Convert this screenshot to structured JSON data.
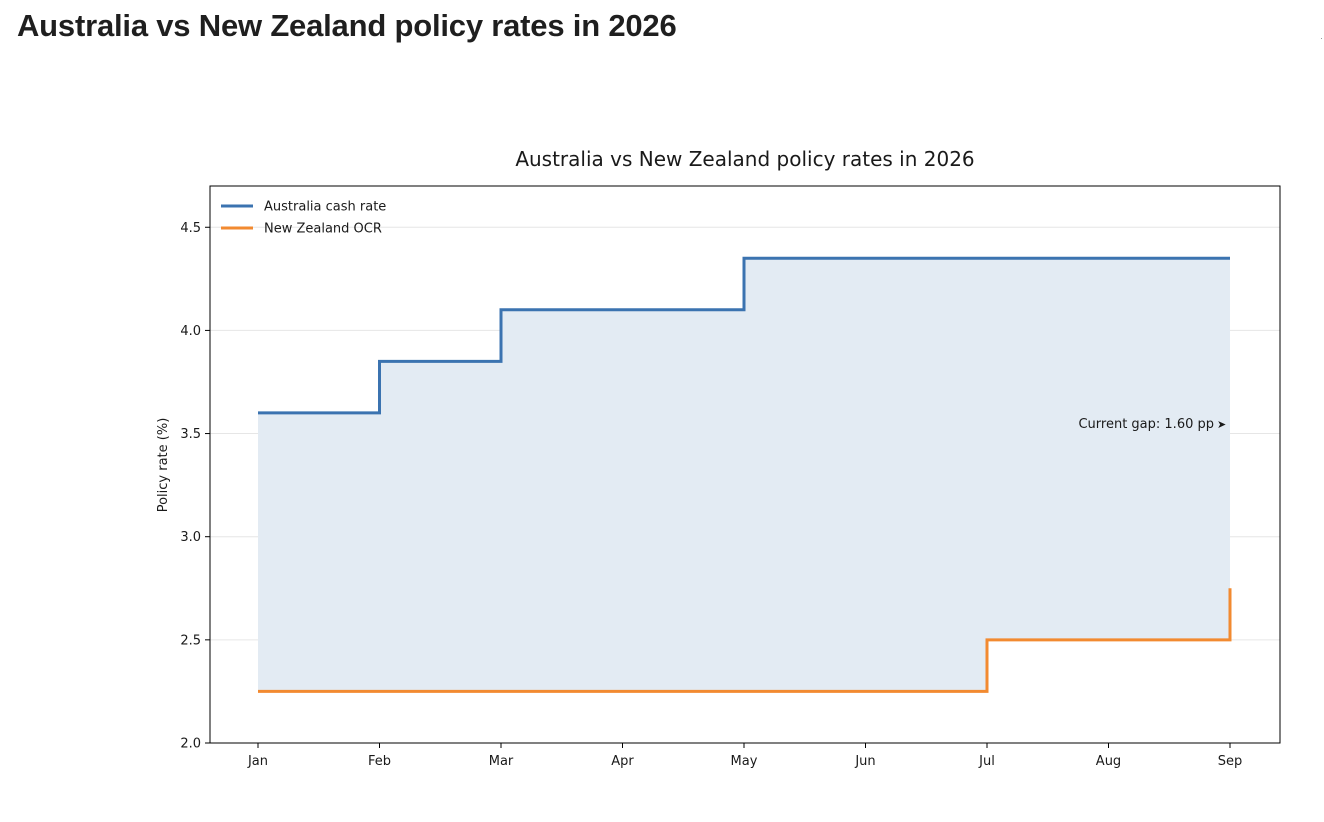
{
  "page": {
    "title": "Australia vs New Zealand policy rates in 2026"
  },
  "chart_data": {
    "type": "line",
    "step": true,
    "title": "Australia vs New Zealand policy rates in 2026",
    "xlabel": "",
    "ylabel": "Policy rate (%)",
    "x_ticks": [
      "Jan",
      "Feb",
      "Mar",
      "Apr",
      "May",
      "Jun",
      "Jul",
      "Aug",
      "Sep"
    ],
    "y_ticks": [
      "2.0",
      "2.5",
      "3.0",
      "3.5",
      "4.0",
      "4.5"
    ],
    "ylim": [
      2.0,
      4.7
    ],
    "grid": true,
    "legend_position": "top-left",
    "series": [
      {
        "name": "Australia cash rate",
        "color": "#3b73b0",
        "points": [
          {
            "x": "Jan",
            "y": 3.6
          },
          {
            "x": "Feb",
            "y": 3.85
          },
          {
            "x": "Mar",
            "y": 4.1
          },
          {
            "x": "May",
            "y": 4.35
          },
          {
            "x": "Sep",
            "y": 4.35
          }
        ]
      },
      {
        "name": "New Zealand OCR",
        "color": "#f28a30",
        "points": [
          {
            "x": "Jan",
            "y": 2.25
          },
          {
            "x": "Jul",
            "y": 2.5
          },
          {
            "x": "Sep",
            "y": 2.75
          }
        ]
      }
    ],
    "fill_between": {
      "color": "#e3ebf3"
    },
    "annotation": {
      "text": "Current gap: 1.60 pp",
      "arrow": "➤"
    }
  }
}
